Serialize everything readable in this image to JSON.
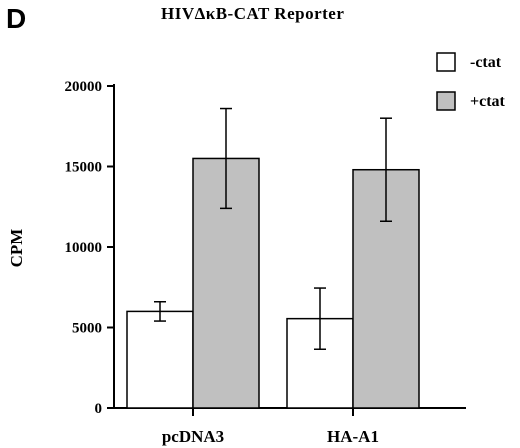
{
  "panel_letter": "D",
  "chart_data": {
    "type": "bar",
    "title": "HIVΔκB-CAT  Reporter",
    "xlabel": "",
    "ylabel": "CPM",
    "categories": [
      "pcDNA3",
      "HA-A1"
    ],
    "series": [
      {
        "name": "-ctat",
        "values": [
          6000,
          5550
        ],
        "errors": [
          600,
          1900
        ],
        "color": "#ffffff"
      },
      {
        "name": "+ctat",
        "values": [
          15500,
          14800
        ],
        "errors": [
          3100,
          3200
        ],
        "color": "#c0c0c0"
      }
    ],
    "ylim": [
      0,
      20000
    ],
    "yticks": [
      0,
      5000,
      10000,
      15000,
      20000
    ],
    "legend_position": "top-right",
    "grid": false
  }
}
